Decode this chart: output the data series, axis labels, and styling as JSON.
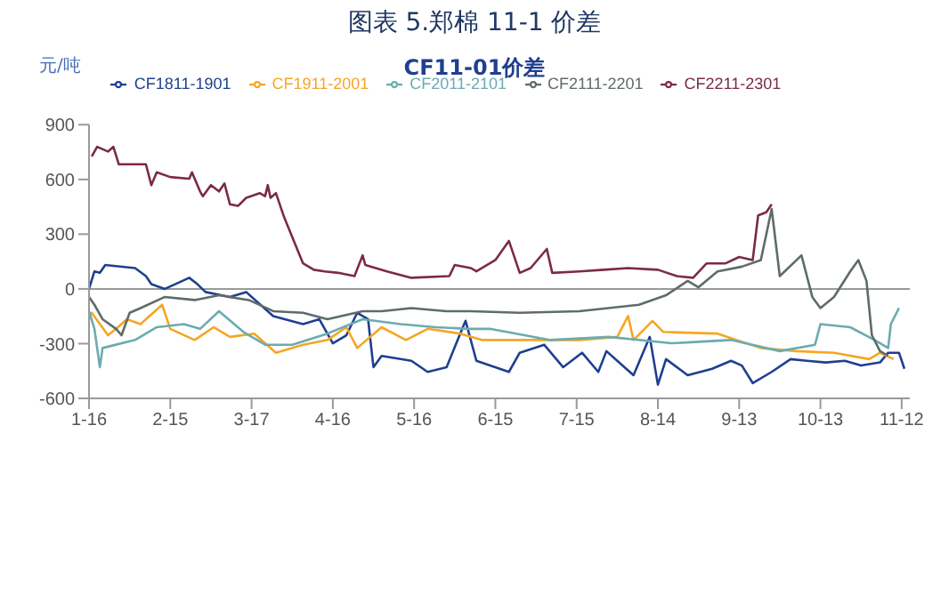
{
  "chart_data": {
    "type": "line",
    "title": "图表 5.郑棉 11-1 价差",
    "subtitle": "CF11-01价差",
    "ylabel": "元/吨",
    "xlim": [
      "--01-16",
      "--11-15"
    ],
    "xticks": [
      {
        "value": "--01-16",
        "label": "1-16"
      },
      {
        "value": "--02-15",
        "label": "2-15"
      },
      {
        "value": "--03-17",
        "label": "3-17"
      },
      {
        "value": "--04-16",
        "label": "4-16"
      },
      {
        "value": "--05-16",
        "label": "5-16"
      },
      {
        "value": "--06-15",
        "label": "6-15"
      },
      {
        "value": "--07-15",
        "label": "7-15"
      },
      {
        "value": "--08-14",
        "label": "8-14"
      },
      {
        "value": "--09-13",
        "label": "9-13"
      },
      {
        "value": "--10-13",
        "label": "10-13"
      },
      {
        "value": "--11-12",
        "label": "11-12"
      }
    ],
    "ylim": [
      -600,
      900
    ],
    "yticks": [
      -600,
      -300,
      0,
      300,
      600,
      900
    ],
    "legend": "top",
    "marker": "none",
    "ref_lines": [
      {
        "axis": "y",
        "value": 0,
        "color": "#999999"
      }
    ],
    "series": [
      {
        "name": "CF1811-1901",
        "color": "#1f3f8f",
        "x": [
          "--01-16",
          "--01-18",
          "--01-20",
          "--01-22",
          "--02-02",
          "--02-06",
          "--02-08",
          "--02-13",
          "--02-22",
          "--02-25",
          "--02-28",
          "--03-09",
          "--03-15",
          "--03-25",
          "--04-05",
          "--04-11",
          "--04-16",
          "--04-21",
          "--04-25",
          "--04-29",
          "--05-01",
          "--05-04",
          "--05-15",
          "--05-21",
          "--05-28",
          "--06-03",
          "--06-04",
          "--06-08",
          "--06-20",
          "--06-24",
          "--07-03",
          "--07-10",
          "--07-17",
          "--07-23",
          "--07-26",
          "--07-30",
          "--08-05",
          "--08-11",
          "--08-14",
          "--08-17",
          "--08-25",
          "--09-03",
          "--09-10",
          "--09-14",
          "--09-18",
          "--09-25",
          "--10-02",
          "--10-08",
          "--10-15",
          "--10-22",
          "--10-28",
          "--11-04",
          "--11-07",
          "--11-11",
          "--11-13"
        ],
        "values": [
          0,
          96,
          88,
          131,
          114,
          70,
          26,
          0,
          61,
          26,
          -17,
          -44,
          -17,
          -149,
          -193,
          -166,
          -298,
          -254,
          -131,
          -166,
          -429,
          -367,
          -394,
          -455,
          -429,
          -210,
          -175,
          -394,
          -455,
          -350,
          -306,
          -429,
          -350,
          -455,
          -341,
          -394,
          -473,
          -263,
          -525,
          -385,
          -473,
          -438,
          -394,
          -420,
          -516,
          -455,
          -385,
          -394,
          -403,
          -394,
          -420,
          -403,
          -350,
          -350,
          -438
        ]
      },
      {
        "name": "CF1911-2001",
        "color": "#f5a623",
        "x": [
          "--01-16",
          "--01-17",
          "--01-23",
          "--01-26",
          "--01-30",
          "--02-04",
          "--02-12",
          "--02-15",
          "--02-24",
          "--03-03",
          "--03-09",
          "--03-18",
          "--03-26",
          "--04-05",
          "--04-14",
          "--04-21",
          "--04-25",
          "--05-04",
          "--05-13",
          "--05-21",
          "--06-02",
          "--06-10",
          "--06-24",
          "--07-16",
          "--07-30",
          "--08-03",
          "--08-05",
          "--08-12",
          "--08-16",
          "--09-05",
          "--09-21",
          "--10-04",
          "--10-18",
          "--10-31",
          "--11-04",
          "--11-09"
        ],
        "values": [
          -149,
          -131,
          -254,
          -219,
          -166,
          -193,
          -87,
          -219,
          -280,
          -210,
          -263,
          -245,
          -350,
          -306,
          -280,
          -210,
          -324,
          -210,
          -280,
          -219,
          -245,
          -280,
          -280,
          -280,
          -263,
          -149,
          -280,
          -175,
          -236,
          -245,
          -324,
          -341,
          -350,
          -385,
          -350,
          -385
        ]
      },
      {
        "name": "CF2011-2101",
        "color": "#6aacb0",
        "x": [
          "--01-16",
          "--01-18",
          "--01-20",
          "--01-21",
          "--02-02",
          "--02-10",
          "--02-20",
          "--02-26",
          "--03-05",
          "--03-14",
          "--03-22",
          "--04-01",
          "--04-14",
          "--04-27",
          "--05-11",
          "--05-24",
          "--06-06",
          "--06-13",
          "--07-05",
          "--07-27",
          "--08-19",
          "--09-10",
          "--09-28",
          "--10-11",
          "--10-13",
          "--10-24",
          "--11-02",
          "--11-07",
          "--11-08",
          "--11-11"
        ],
        "values": [
          -122,
          -219,
          -429,
          -324,
          -280,
          -210,
          -193,
          -219,
          -122,
          -236,
          -306,
          -306,
          -245,
          -166,
          -193,
          -210,
          -219,
          -219,
          -280,
          -263,
          -298,
          -280,
          -341,
          -306,
          -193,
          -210,
          -280,
          -324,
          -193,
          -105
        ]
      },
      {
        "name": "CF2111-2201",
        "color": "#5f6b6b",
        "x": [
          "--01-16",
          "--01-18",
          "--01-21",
          "--01-26",
          "--01-28",
          "--01-31",
          "--02-04",
          "--02-13",
          "--02-24",
          "--03-05",
          "--03-16",
          "--03-25",
          "--04-05",
          "--04-14",
          "--04-27",
          "--05-04",
          "--05-15",
          "--05-28",
          "--06-06",
          "--06-24",
          "--07-16",
          "--08-07",
          "--08-17",
          "--08-25",
          "--08-29",
          "--09-05",
          "--09-14",
          "--09-21",
          "--09-25",
          "--09-28",
          "--10-06",
          "--10-10",
          "--10-13",
          "--10-18",
          "--10-24",
          "--10-27",
          "--10-30",
          "--11-01",
          "--11-04",
          "--11-07"
        ],
        "values": [
          -44,
          -87,
          -166,
          -219,
          -254,
          -131,
          -105,
          -44,
          -61,
          -35,
          -61,
          -122,
          -131,
          -166,
          -122,
          -122,
          -105,
          -122,
          -122,
          -131,
          -122,
          -87,
          -35,
          44,
          9,
          96,
          122,
          158,
          438,
          70,
          184,
          -44,
          -105,
          -44,
          96,
          158,
          44,
          -254,
          -341,
          -367
        ]
      },
      {
        "name": "CF2211-2301",
        "color": "#7b2a4a",
        "x": [
          "--01-17",
          "--01-19",
          "--01-23",
          "--01-25",
          "--01-27",
          "--02-06",
          "--02-08",
          "--02-10",
          "--02-15",
          "--02-22",
          "--02-23",
          "--02-26",
          "--02-27",
          "--03-02",
          "--03-05",
          "--03-07",
          "--03-09",
          "--03-12",
          "--03-15",
          "--03-20",
          "--03-22",
          "--03-23",
          "--03-24",
          "--03-26",
          "--03-29",
          "--04-05",
          "--04-09",
          "--04-13",
          "--04-18",
          "--04-24",
          "--04-27",
          "--04-28",
          "--05-06",
          "--05-15",
          "--05-29",
          "--05-31",
          "--06-06",
          "--06-08",
          "--06-15",
          "--06-20",
          "--06-24",
          "--06-28",
          "--07-04",
          "--07-06",
          "--07-16",
          "--07-25",
          "--08-03",
          "--08-14",
          "--08-21",
          "--08-27",
          "--09-01",
          "--09-08",
          "--09-13",
          "--09-18",
          "--09-20",
          "--09-23",
          "--09-25"
        ],
        "values": [
          726,
          779,
          753,
          779,
          683,
          683,
          569,
          639,
          613,
          604,
          639,
          534,
          508,
          569,
          534,
          578,
          464,
          455,
          499,
          525,
          508,
          569,
          499,
          525,
          394,
          140,
          105,
          96,
          88,
          70,
          184,
          131,
          96,
          61,
          70,
          131,
          114,
          96,
          158,
          263,
          88,
          114,
          219,
          88,
          96,
          105,
          114,
          105,
          70,
          61,
          140,
          140,
          175,
          158,
          403,
          420,
          464
        ]
      }
    ]
  }
}
